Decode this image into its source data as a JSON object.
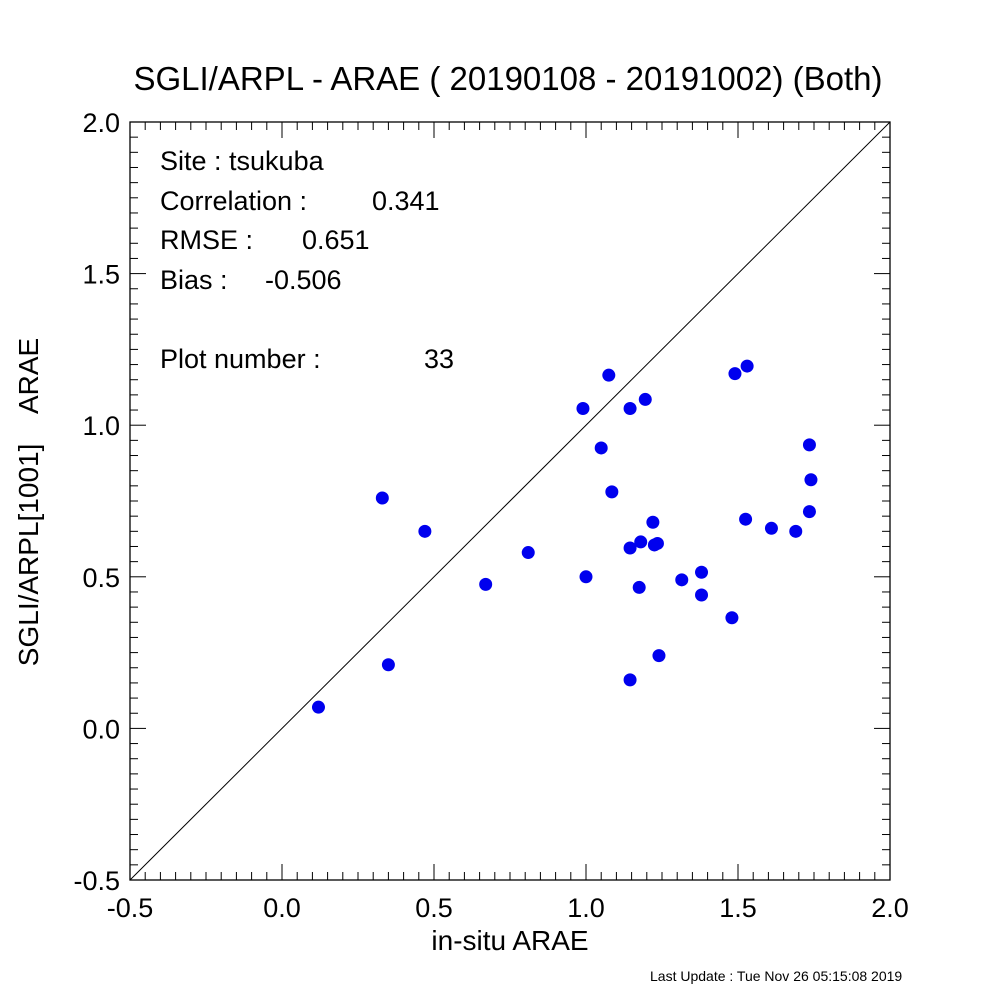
{
  "chart_data": {
    "type": "scatter",
    "title": "SGLI/ARPL - ARAE ( 20190108 - 20191002) (Both)",
    "xlabel": "in-situ ARAE",
    "ylabel": "SGLI/ARPL[1001]    ARAE",
    "xlim": [
      -0.5,
      2.0
    ],
    "ylim": [
      -0.5,
      2.0
    ],
    "x_ticks": [
      "-0.5",
      "0.0",
      "0.5",
      "1.0",
      "1.5",
      "2.0"
    ],
    "y_ticks": [
      "-0.5",
      "0.0",
      "0.5",
      "1.0",
      "1.5",
      "2.0"
    ],
    "one_to_one_line": true,
    "grid": false,
    "point_color": "#0000ee",
    "stats": [
      {
        "label": "Site : tsukuba",
        "value": ""
      },
      {
        "label": "Correlation :",
        "value": "0.341"
      },
      {
        "label": "RMSE :",
        "value": "0.651"
      },
      {
        "label": "Bias :",
        "value": "-0.506"
      },
      {
        "label": "Plot number :",
        "value": "33"
      }
    ],
    "points": [
      {
        "x": 0.12,
        "y": 0.07
      },
      {
        "x": 0.33,
        "y": 0.76
      },
      {
        "x": 0.35,
        "y": 0.21
      },
      {
        "x": 0.47,
        "y": 0.65
      },
      {
        "x": 0.67,
        "y": 0.475
      },
      {
        "x": 0.81,
        "y": 0.58
      },
      {
        "x": 0.99,
        "y": 1.055
      },
      {
        "x": 1.0,
        "y": 0.5
      },
      {
        "x": 1.05,
        "y": 0.925
      },
      {
        "x": 1.075,
        "y": 1.165
      },
      {
        "x": 1.085,
        "y": 0.78
      },
      {
        "x": 1.145,
        "y": 1.055
      },
      {
        "x": 1.145,
        "y": 0.595
      },
      {
        "x": 1.145,
        "y": 0.16
      },
      {
        "x": 1.175,
        "y": 0.465
      },
      {
        "x": 1.18,
        "y": 0.615
      },
      {
        "x": 1.195,
        "y": 1.085
      },
      {
        "x": 1.22,
        "y": 0.68
      },
      {
        "x": 1.225,
        "y": 0.605
      },
      {
        "x": 1.235,
        "y": 0.61
      },
      {
        "x": 1.24,
        "y": 0.24
      },
      {
        "x": 1.315,
        "y": 0.49
      },
      {
        "x": 1.38,
        "y": 0.515
      },
      {
        "x": 1.38,
        "y": 0.44
      },
      {
        "x": 1.48,
        "y": 0.365
      },
      {
        "x": 1.49,
        "y": 1.17
      },
      {
        "x": 1.525,
        "y": 0.69
      },
      {
        "x": 1.53,
        "y": 1.195
      },
      {
        "x": 1.61,
        "y": 0.66
      },
      {
        "x": 1.69,
        "y": 0.65
      },
      {
        "x": 1.735,
        "y": 0.935
      },
      {
        "x": 1.735,
        "y": 0.715
      },
      {
        "x": 1.74,
        "y": 0.82
      }
    ]
  },
  "footer": {
    "last_update": "Last Update : Tue Nov 26 05:15:08 2019"
  }
}
